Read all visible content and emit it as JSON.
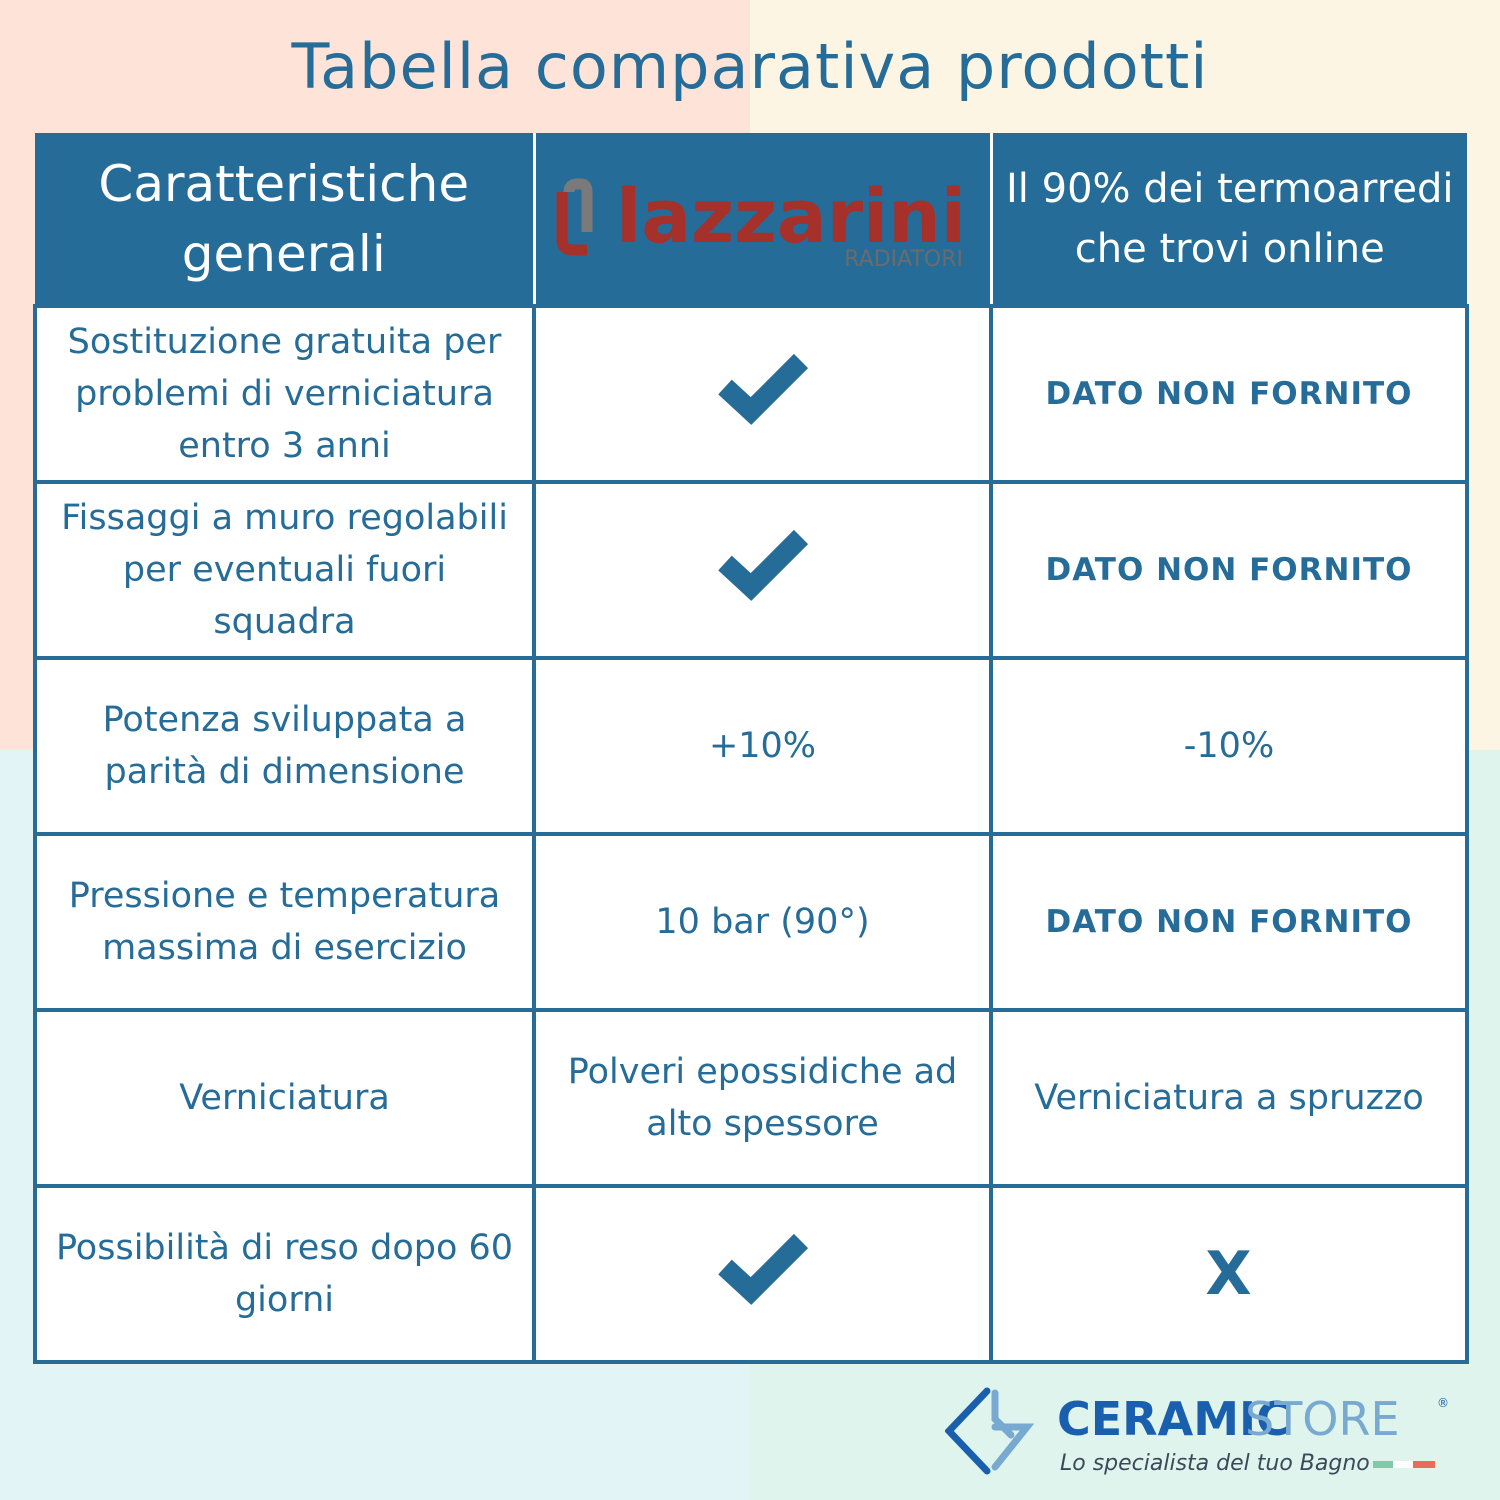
{
  "title": "Tabella comparativa prodotti",
  "colors": {
    "primary": "#256c99",
    "brand_red": "#a6302a",
    "bg_top_left": "#fde3d8",
    "bg_top_right": "#fdf5e3",
    "bg_bottom_left": "#e3f4f7",
    "bg_bottom_right": "#e0f4ee"
  },
  "header": {
    "col1": "Caratteristiche generali",
    "col2_logo": {
      "name": "lazzarini",
      "sub": "RADIATORI"
    },
    "col3": "Il 90% dei termoarredi che trovi online"
  },
  "rows": [
    {
      "feature": "Sostituzione gratuita per problemi di verniciatura entro 3 anni",
      "lazzarini": {
        "icon": "check-icon"
      },
      "others": "DATO NON FORNITO"
    },
    {
      "feature": "Fissaggi a muro regolabili per eventuali fuori squadra",
      "lazzarini": {
        "icon": "check-icon"
      },
      "others": "DATO NON FORNITO"
    },
    {
      "feature": "Potenza sviluppata a parità di dimensione",
      "lazzarini": "+10%",
      "others": "-10%"
    },
    {
      "feature": "Pressione e temperatura massima di esercizio",
      "lazzarini": "10 bar (90°)",
      "others": "DATO NON FORNITO"
    },
    {
      "feature": "Verniciatura",
      "lazzarini": "Polveri epossidiche ad alto spessore",
      "others": "Verniciatura a spruzzo"
    },
    {
      "feature": "Possibilità di reso dopo 60 giorni",
      "lazzarini": {
        "icon": "check-icon"
      },
      "others": "X"
    }
  ],
  "footer": {
    "brand_a": "CERAMIC",
    "brand_b": "STORE",
    "reg": "®",
    "tagline": "Lo specialista del tuo Bagno"
  }
}
